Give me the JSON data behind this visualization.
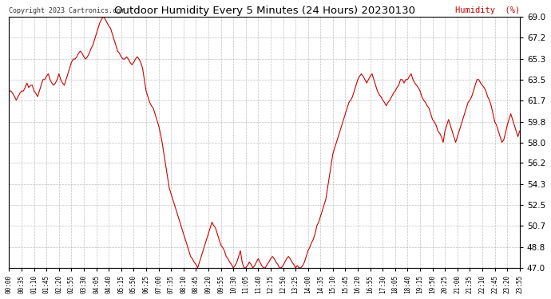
{
  "title": "Outdoor Humidity Every 5 Minutes (24 Hours) 20230130",
  "ylabel": "Humidity  (%)",
  "copyright": "Copyright 2023 Cartronics.com",
  "line_color": "#cc0000",
  "bg_color": "#ffffff",
  "grid_color": "#b0b0b0",
  "ylim": [
    47.0,
    69.0
  ],
  "yticks": [
    47.0,
    48.8,
    50.7,
    52.5,
    54.3,
    56.2,
    58.0,
    59.8,
    61.7,
    63.5,
    65.3,
    67.2,
    69.0
  ],
  "xtick_labels": [
    "00:00",
    "00:35",
    "01:10",
    "01:45",
    "02:20",
    "02:55",
    "03:30",
    "04:05",
    "04:40",
    "05:15",
    "05:50",
    "06:25",
    "07:00",
    "07:35",
    "08:10",
    "08:45",
    "09:20",
    "09:55",
    "10:30",
    "11:05",
    "11:40",
    "12:15",
    "12:50",
    "13:25",
    "14:00",
    "14:35",
    "15:10",
    "15:45",
    "16:20",
    "16:55",
    "17:30",
    "18:05",
    "18:40",
    "19:15",
    "19:50",
    "20:25",
    "21:00",
    "21:35",
    "22:10",
    "22:45",
    "23:20",
    "23:55"
  ],
  "humidity_values": [
    62.5,
    62.5,
    62.3,
    62.0,
    61.7,
    62.0,
    62.3,
    62.5,
    62.5,
    62.8,
    63.2,
    62.8,
    63.0,
    63.0,
    62.5,
    62.3,
    62.0,
    62.5,
    63.0,
    63.5,
    63.5,
    63.8,
    64.0,
    63.5,
    63.2,
    63.0,
    63.2,
    63.5,
    64.0,
    63.5,
    63.2,
    63.0,
    63.5,
    64.0,
    64.5,
    65.0,
    65.3,
    65.3,
    65.5,
    65.8,
    66.0,
    65.8,
    65.5,
    65.3,
    65.5,
    65.8,
    66.2,
    66.5,
    67.0,
    67.5,
    68.0,
    68.5,
    68.8,
    69.0,
    68.8,
    68.5,
    68.2,
    68.0,
    67.5,
    67.0,
    66.5,
    66.0,
    65.8,
    65.5,
    65.3,
    65.3,
    65.5,
    65.3,
    65.0,
    64.8,
    65.0,
    65.3,
    65.5,
    65.3,
    65.0,
    64.5,
    63.5,
    62.5,
    62.0,
    61.5,
    61.2,
    61.0,
    60.5,
    60.0,
    59.5,
    58.8,
    58.0,
    57.0,
    56.0,
    55.0,
    54.0,
    53.5,
    53.0,
    52.5,
    52.0,
    51.5,
    51.0,
    50.5,
    50.0,
    49.5,
    49.0,
    48.5,
    48.0,
    47.8,
    47.5,
    47.3,
    47.0,
    47.5,
    48.0,
    48.5,
    49.0,
    49.5,
    50.0,
    50.5,
    51.0,
    50.7,
    50.5,
    50.0,
    49.5,
    49.0,
    48.8,
    48.5,
    48.0,
    47.8,
    47.5,
    47.3,
    47.0,
    47.2,
    47.5,
    48.0,
    48.5,
    47.5,
    47.0,
    47.0,
    47.2,
    47.5,
    47.3,
    47.0,
    47.2,
    47.5,
    47.8,
    47.5,
    47.2,
    47.0,
    47.0,
    47.3,
    47.5,
    47.8,
    48.0,
    47.8,
    47.5,
    47.3,
    47.0,
    47.0,
    47.2,
    47.5,
    47.8,
    48.0,
    47.8,
    47.5,
    47.3,
    47.0,
    47.2,
    47.0,
    47.0,
    47.2,
    47.5,
    48.0,
    48.5,
    48.8,
    49.2,
    49.5,
    50.0,
    50.7,
    51.0,
    51.5,
    52.0,
    52.5,
    53.0,
    54.0,
    55.0,
    56.0,
    57.0,
    57.5,
    58.0,
    58.5,
    59.0,
    59.5,
    60.0,
    60.5,
    61.0,
    61.5,
    61.7,
    62.0,
    62.5,
    63.0,
    63.5,
    63.8,
    64.0,
    63.8,
    63.5,
    63.2,
    63.5,
    63.8,
    64.0,
    63.5,
    63.0,
    62.5,
    62.2,
    62.0,
    61.7,
    61.5,
    61.2,
    61.5,
    61.7,
    62.0,
    62.3,
    62.5,
    62.8,
    63.0,
    63.5,
    63.5,
    63.2,
    63.5,
    63.5,
    63.8,
    64.0,
    63.5,
    63.2,
    63.0,
    62.8,
    62.5,
    62.0,
    61.7,
    61.5,
    61.2,
    61.0,
    60.5,
    60.0,
    59.8,
    59.5,
    59.0,
    58.8,
    58.5,
    58.0,
    59.0,
    59.5,
    60.0,
    59.5,
    59.0,
    58.5,
    58.0,
    58.5,
    59.0,
    59.5,
    60.0,
    60.5,
    61.0,
    61.5,
    61.7,
    62.0,
    62.5,
    63.0,
    63.5,
    63.5,
    63.2,
    63.0,
    62.8,
    62.5,
    62.0,
    61.7,
    61.2,
    60.5,
    59.8,
    59.5,
    59.0,
    58.5,
    58.0,
    58.2,
    58.8,
    59.5,
    60.0,
    60.5,
    60.0,
    59.5,
    59.0,
    58.5,
    59.0,
    59.8,
    60.5
  ]
}
